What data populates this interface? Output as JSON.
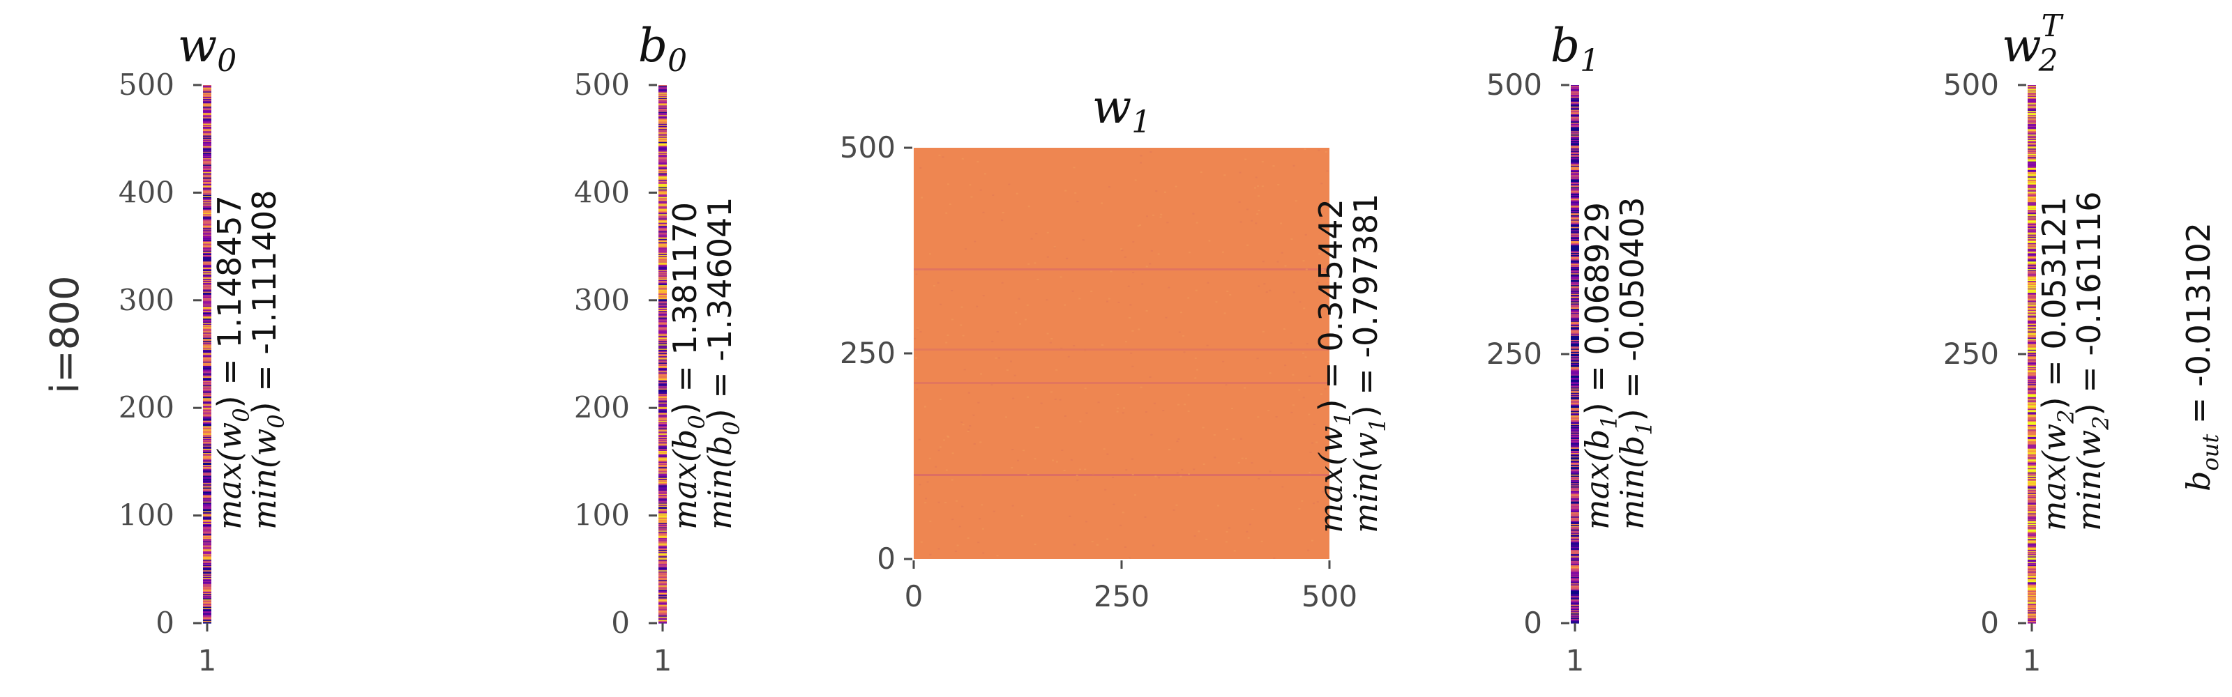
{
  "figure": {
    "row_label": "i=800",
    "colors": {
      "colormap": "plasma",
      "background": "#ffffff",
      "w1_fill": "#ee8651"
    }
  },
  "chart_data": [
    {
      "type": "heatmap",
      "id": "w0",
      "title": "w",
      "title_sub": "0",
      "title_sup": "",
      "x_ticks": [
        "1"
      ],
      "y_ticks": [
        "0",
        "100",
        "200",
        "300",
        "400",
        "500"
      ],
      "y_tick_values": [
        0,
        100,
        200,
        300,
        400,
        500
      ],
      "ylim": [
        0,
        500
      ],
      "grid": false,
      "annotation": {
        "max_name": "max(w",
        "max_sub": "0",
        "max_value": ") = 1.148457",
        "min_name": "min(w",
        "min_sub": "0",
        "min_value": ") = -1.111408"
      },
      "max": 1.148457,
      "min": -1.111408
    },
    {
      "type": "heatmap",
      "id": "b0",
      "title": "b",
      "title_sub": "0",
      "title_sup": "",
      "x_ticks": [
        "1"
      ],
      "y_ticks": [
        "0",
        "100",
        "200",
        "300",
        "400",
        "500"
      ],
      "y_tick_values": [
        0,
        100,
        200,
        300,
        400,
        500
      ],
      "ylim": [
        0,
        500
      ],
      "grid": false,
      "annotation": {
        "max_name": "max(b",
        "max_sub": "0",
        "max_value": ") = 1.381170",
        "min_name": "min(b",
        "min_sub": "0",
        "min_value": ") = -1.346041"
      },
      "max": 1.38117,
      "min": -1.346041
    },
    {
      "type": "heatmap",
      "id": "w1",
      "title": "w",
      "title_sub": "1",
      "title_sup": "",
      "x_ticks": [
        "0",
        "250",
        "500"
      ],
      "x_tick_values": [
        0,
        250,
        500
      ],
      "xlim": [
        0,
        500
      ],
      "y_ticks": [
        "0",
        "250",
        "500"
      ],
      "y_tick_values": [
        0,
        250,
        500
      ],
      "ylim": [
        0,
        500
      ],
      "grid": false,
      "annotation": {
        "max_name": "max(w",
        "max_sub": "1",
        "max_value": ") = 0.345442",
        "min_name": "min(w",
        "min_sub": "1",
        "min_value": ") = -0.797381"
      },
      "max": 0.345442,
      "min": -0.797381
    },
    {
      "type": "heatmap",
      "id": "b1",
      "title": "b",
      "title_sub": "1",
      "title_sup": "",
      "x_ticks": [
        "1"
      ],
      "y_ticks": [
        "0",
        "250",
        "500"
      ],
      "y_tick_values": [
        0,
        250,
        500
      ],
      "ylim": [
        0,
        500
      ],
      "grid": false,
      "annotation": {
        "max_name": "max(b",
        "max_sub": "1",
        "max_value": ") = 0.068929",
        "min_name": "min(b",
        "min_sub": "1",
        "min_value": ") = -0.050403"
      },
      "max": 0.068929,
      "min": -0.050403
    },
    {
      "type": "heatmap",
      "id": "w2T",
      "title": "w",
      "title_sub": "2",
      "title_sup": "T",
      "x_ticks": [
        "1"
      ],
      "y_ticks": [
        "0",
        "250",
        "500"
      ],
      "y_tick_values": [
        0,
        250,
        500
      ],
      "ylim": [
        0,
        500
      ],
      "grid": false,
      "annotation": {
        "max_name": "max(w",
        "max_sub": "2",
        "max_value": ") = 0.053121",
        "min_name": "min(w",
        "min_sub": "2",
        "min_value": ") = -0.161116"
      },
      "max": 0.053121,
      "min": -0.161116
    }
  ],
  "bout": {
    "name": "b",
    "sub": "out",
    "value": " = -0.013102"
  }
}
